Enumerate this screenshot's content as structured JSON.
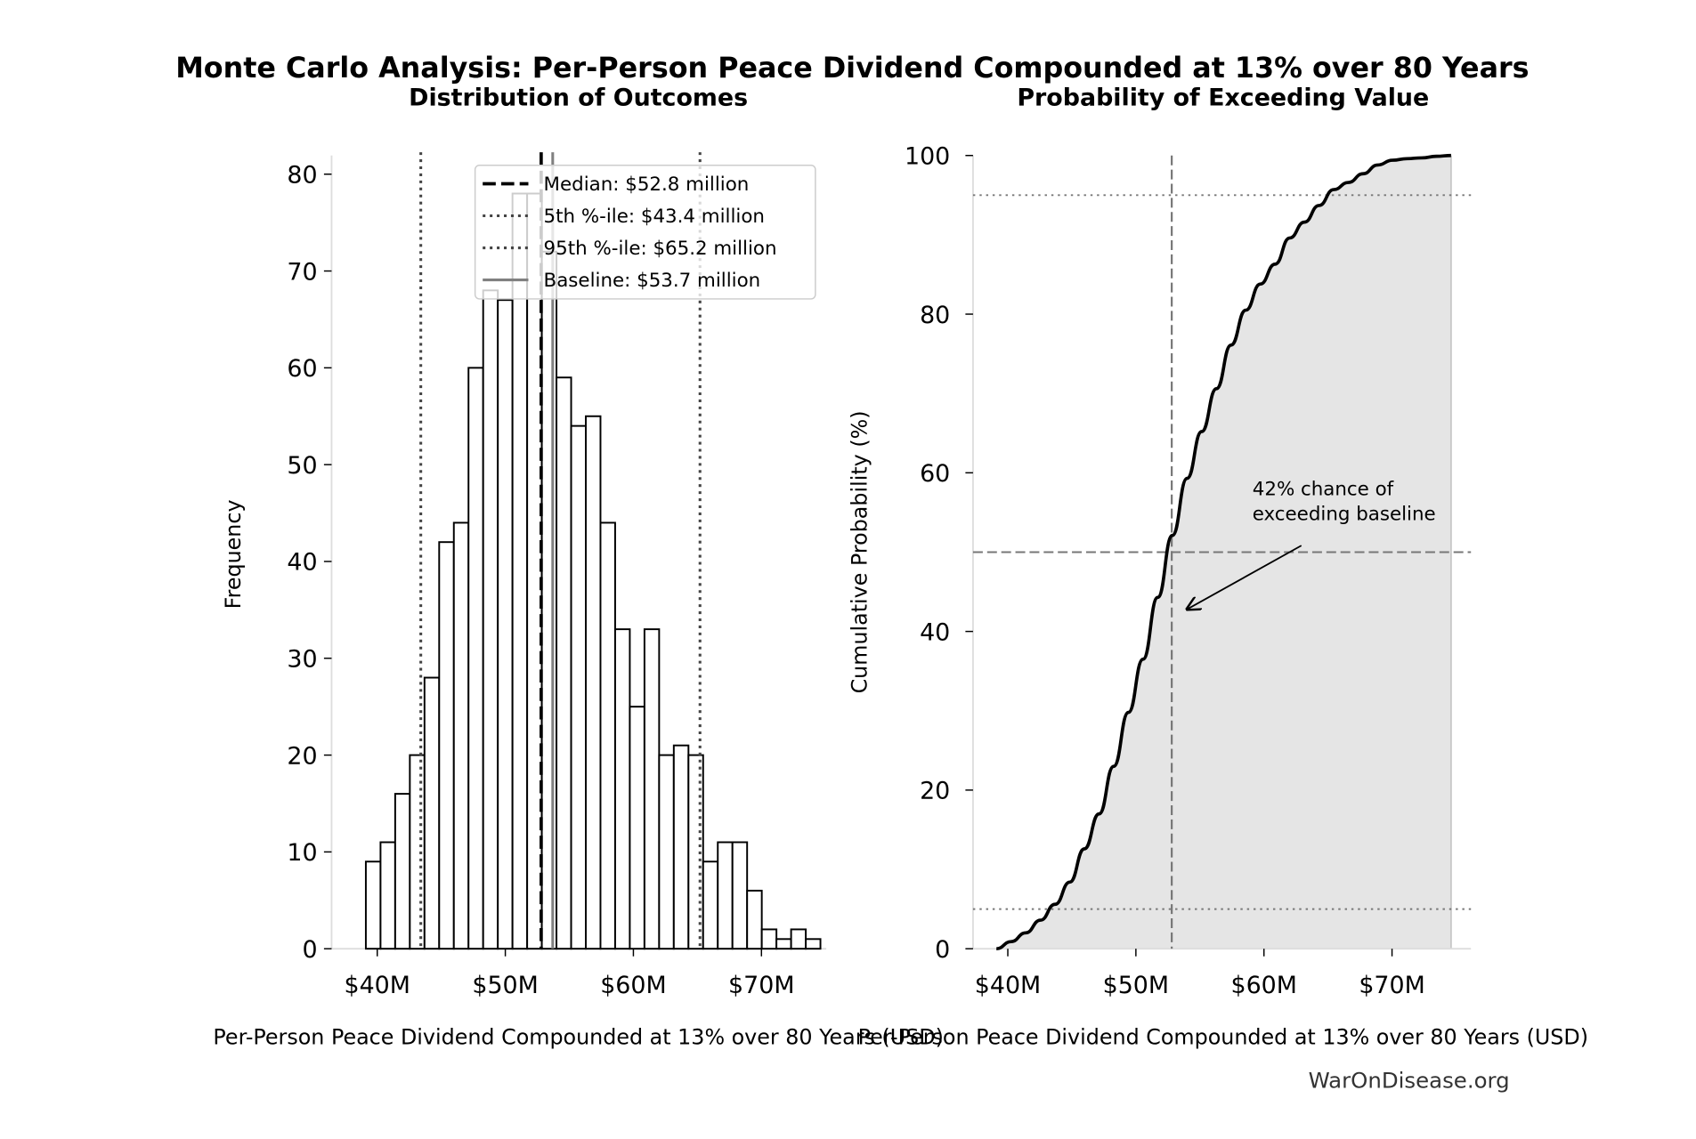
{
  "title": "Monte Carlo Analysis: Per-Person Peace Dividend Compounded at 13% over 80 Years",
  "watermark": "WarOnDisease.org",
  "colors": {
    "bar_fill": "#ffffff",
    "bar_edge": "#000000",
    "cdf_fill": "#e5e5e5",
    "ref_line": "#777777",
    "baseline": "#808080"
  },
  "chart_data": [
    {
      "type": "bar",
      "title": "Distribution of Outcomes",
      "xlabel": "Per-Person Peace Dividend Compounded at 13% over 80 Years (USD)",
      "ylabel": "Frequency",
      "bin_start": 39.11,
      "bin_width": 1.145,
      "values": [
        9,
        11,
        16,
        20,
        28,
        42,
        44,
        60,
        68,
        67,
        78,
        78,
        72,
        59,
        54,
        55,
        44,
        33,
        25,
        33,
        20,
        21,
        20,
        9,
        11,
        11,
        6,
        2,
        1,
        2,
        1
      ],
      "xlim": [
        37.5,
        76
      ],
      "ylim": [
        0,
        82
      ],
      "xticks": [
        40,
        50,
        60,
        70
      ],
      "xtick_labels": [
        "$40M",
        "$50M",
        "$60M",
        "$70M"
      ],
      "yticks": [
        0,
        10,
        20,
        30,
        40,
        50,
        60,
        70,
        80
      ],
      "ytick_labels": [
        "0",
        "10",
        "20",
        "30",
        "40",
        "50",
        "60",
        "70",
        "80"
      ],
      "grid": false,
      "legend_placement": "upper-right",
      "reference_lines": [
        {
          "label": "Median: $52.8 million",
          "value": 52.8,
          "style": "dashed",
          "color": "#000000"
        },
        {
          "label": "5th %-ile: $43.4 million",
          "value": 43.4,
          "style": "dotted",
          "color": "#444444"
        },
        {
          "label": "95th %-ile: $65.2 million",
          "value": 65.2,
          "style": "dotted",
          "color": "#444444"
        },
        {
          "label": "Baseline: $53.7 million",
          "value": 53.7,
          "style": "solid",
          "color": "#808080"
        }
      ]
    },
    {
      "type": "area",
      "title": "Probability of Exceeding Value",
      "xlabel": "Per-Person Peace Dividend Compounded at 13% over 80 Years (USD)",
      "ylabel": "Cumulative Probability (%)",
      "x": [
        39.11,
        40.26,
        41.4,
        42.55,
        43.69,
        44.84,
        45.98,
        47.13,
        48.27,
        49.42,
        50.56,
        51.71,
        52.85,
        54.0,
        55.14,
        56.29,
        57.43,
        58.58,
        59.72,
        60.87,
        62.01,
        63.16,
        64.3,
        65.45,
        66.59,
        67.74,
        68.88,
        70.03,
        71.17,
        72.32,
        73.46,
        74.61
      ],
      "y": [
        0,
        0.9,
        2.0,
        3.6,
        5.6,
        8.4,
        12.6,
        17.0,
        23.0,
        29.8,
        36.5,
        44.3,
        52.1,
        59.3,
        65.2,
        70.6,
        76.1,
        80.5,
        83.8,
        86.3,
        89.6,
        91.6,
        93.7,
        95.7,
        96.6,
        97.7,
        98.8,
        99.4,
        99.6,
        99.7,
        99.9,
        100
      ],
      "xlim": [
        37.5,
        76
      ],
      "ylim": [
        0,
        100
      ],
      "xticks": [
        40,
        50,
        60,
        70
      ],
      "xtick_labels": [
        "$40M",
        "$50M",
        "$60M",
        "$70M"
      ],
      "yticks": [
        0,
        20,
        40,
        60,
        80,
        100
      ],
      "ytick_labels": [
        "0",
        "20",
        "40",
        "60",
        "80",
        "100"
      ],
      "grid": false,
      "hlines": [
        {
          "value": 5,
          "style": "dotted"
        },
        {
          "value": 50,
          "style": "dashed"
        },
        {
          "value": 95,
          "style": "dotted"
        }
      ],
      "vline": {
        "value": 52.8,
        "style": "dashed"
      },
      "annotation": {
        "line1": "42% chance of",
        "line2": "exceeding baseline",
        "text_x": 59.1,
        "text_y": 56.5,
        "arrow_x": 54.0,
        "arrow_y": 42.8
      }
    }
  ]
}
